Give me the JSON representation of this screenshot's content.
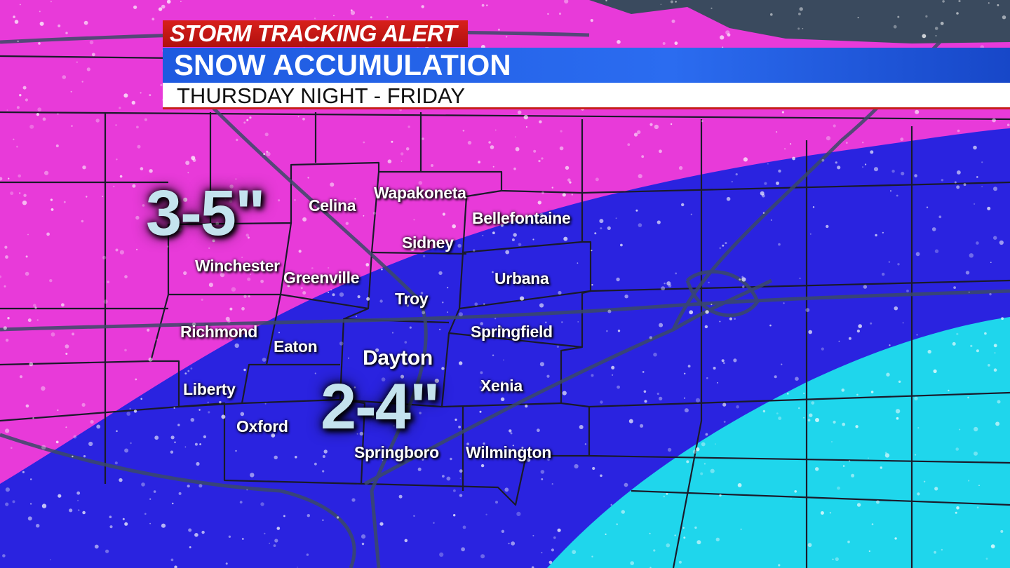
{
  "header": {
    "alert_label": "STORM TRACKING ALERT",
    "title": "SNOW ACCUMULATION",
    "subtitle": "THURSDAY NIGHT - FRIDAY"
  },
  "colors": {
    "heavy_zone": "#e83ad9",
    "medium_zone": "#2a23e0",
    "light_zone": "#1fd6ec",
    "alert_red": "#c8181a",
    "title_blue": "#2563e8"
  },
  "zones": [
    {
      "amount": "3-5\""
    },
    {
      "amount": "2-4\""
    }
  ],
  "cities": [
    "Celina",
    "Wapakoneta",
    "Bellefontaine",
    "Sidney",
    "Winchester",
    "Greenville",
    "Urbana",
    "Troy",
    "Richmond",
    "Eaton",
    "Springfield",
    "Dayton",
    "Liberty",
    "Xenia",
    "Oxford",
    "Springboro",
    "Wilmington"
  ]
}
